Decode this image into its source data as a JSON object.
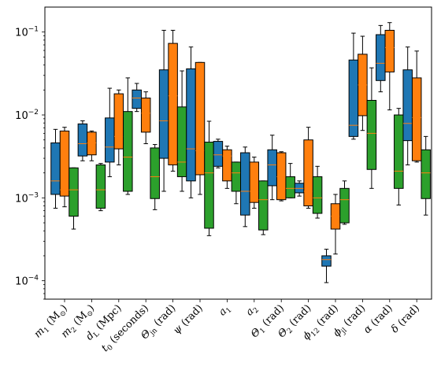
{
  "chart_data": {
    "type": "box",
    "yscale": "log",
    "ylim": [
      6e-05,
      0.2
    ],
    "yticks": [
      {
        "value": 0.1,
        "base": "10",
        "exp": "−1"
      },
      {
        "value": 0.01,
        "base": "10",
        "exp": "−2"
      },
      {
        "value": 0.001,
        "base": "10",
        "exp": "−3"
      },
      {
        "value": 0.0001,
        "base": "10",
        "exp": "−4"
      }
    ],
    "series_colors": [
      "#1f77b4",
      "#ff7f0e",
      "#2ca02c"
    ],
    "median_color": "#ff7f0e",
    "categories": [
      {
        "label_main": "m",
        "label_sub": "1",
        "label_rest": " (M",
        "label_sun": "⊙",
        "label_end": ")"
      },
      {
        "label_main": "m",
        "label_sub": "2",
        "label_rest": " (M",
        "label_sun": "⊙",
        "label_end": ")"
      },
      {
        "label_main": "d",
        "label_sub": "L",
        "label_rest": " (Mpc)",
        "label_sun": "",
        "label_end": ""
      },
      {
        "label_main": "t",
        "label_sub": "0",
        "label_rest": " (seconds)",
        "label_sun": "",
        "label_end": ""
      },
      {
        "label_main": "Θ",
        "label_sub": "jn",
        "label_rest": " (rad)",
        "label_sun": "",
        "label_end": ""
      },
      {
        "label_main": "ψ",
        "label_sub": "",
        "label_rest": " (rad)",
        "label_sun": "",
        "label_end": ""
      },
      {
        "label_main": "a",
        "label_sub": "1",
        "label_rest": "",
        "label_sun": "",
        "label_end": ""
      },
      {
        "label_main": "a",
        "label_sub": "2",
        "label_rest": "",
        "label_sun": "",
        "label_end": ""
      },
      {
        "label_main": "Θ",
        "label_sub": "1",
        "label_rest": " (rad)",
        "label_sun": "",
        "label_end": ""
      },
      {
        "label_main": "Θ",
        "label_sub": "2",
        "label_rest": " (rad)",
        "label_sun": "",
        "label_end": ""
      },
      {
        "label_main": "ϕ",
        "label_sub": "12",
        "label_rest": " (rad)",
        "label_sun": "",
        "label_end": ""
      },
      {
        "label_main": "ϕ",
        "label_sub": "jl",
        "label_rest": " (rad)",
        "label_sun": "",
        "label_end": ""
      },
      {
        "label_main": "α",
        "label_sub": "",
        "label_rest": " (rad)",
        "label_sun": "",
        "label_end": ""
      },
      {
        "label_main": "δ",
        "label_sub": "",
        "label_rest": " (rad)",
        "label_sun": "",
        "label_end": ""
      }
    ],
    "boxes": [
      [
        {
          "whislo": 0.00075,
          "q1": 0.0011,
          "med": 0.0016,
          "q3": 0.0046,
          "whishi": 0.0067
        },
        {
          "whislo": 0.00078,
          "q1": 0.00105,
          "med": 0.00125,
          "q3": 0.0064,
          "whishi": 0.0071
        },
        {
          "whislo": 0.00042,
          "q1": 0.0006,
          "med": 0.00125,
          "q3": 0.0023,
          "whishi": 0.0023
        }
      ],
      [
        {
          "whislo": 0.0028,
          "q1": 0.0032,
          "med": 0.0045,
          "q3": 0.0078,
          "whishi": 0.0085
        },
        {
          "whislo": 0.0028,
          "q1": 0.0033,
          "med": 0.0046,
          "q3": 0.0062,
          "whishi": 0.0064
        },
        {
          "whislo": 0.0007,
          "q1": 0.00075,
          "med": 0.00125,
          "q3": 0.0025,
          "whishi": 0.0026
        }
      ],
      [
        {
          "whislo": 0.0018,
          "q1": 0.0027,
          "med": 0.0041,
          "q3": 0.0092,
          "whishi": 0.021
        },
        {
          "whislo": 0.0025,
          "q1": 0.0039,
          "med": 0.0055,
          "q3": 0.018,
          "whishi": 0.02
        },
        {
          "whislo": 0.0011,
          "q1": 0.0012,
          "med": 0.0031,
          "q3": 0.011,
          "whishi": 0.028
        }
      ],
      [
        {
          "whislo": 0.011,
          "q1": 0.012,
          "med": 0.016,
          "q3": 0.02,
          "whishi": 0.024
        },
        {
          "whislo": 0.0045,
          "q1": 0.0062,
          "med": 0.0105,
          "q3": 0.016,
          "whishi": 0.019
        },
        {
          "whislo": 0.00072,
          "q1": 0.00098,
          "med": 0.0018,
          "q3": 0.004,
          "whishi": 0.0044
        }
      ],
      [
        {
          "whislo": 0.0012,
          "q1": 0.003,
          "med": 0.0085,
          "q3": 0.035,
          "whishi": 0.105
        },
        {
          "whislo": 0.0021,
          "q1": 0.0025,
          "med": 0.017,
          "q3": 0.073,
          "whishi": 0.105
        },
        {
          "whislo": 0.0012,
          "q1": 0.0018,
          "med": 0.0027,
          "q3": 0.0125,
          "whishi": 0.034
        }
      ],
      [
        {
          "whislo": 0.001,
          "q1": 0.0016,
          "med": 0.0039,
          "q3": 0.036,
          "whishi": 0.066
        },
        {
          "whislo": 0.0011,
          "q1": 0.0019,
          "med": 0.0037,
          "q3": 0.043,
          "whishi": 0.043
        },
        {
          "whislo": 0.00035,
          "q1": 0.00043,
          "med": 0.002,
          "q3": 0.0047,
          "whishi": 0.0084
        }
      ],
      [
        {
          "whislo": 0.0023,
          "q1": 0.0024,
          "med": 0.0033,
          "q3": 0.0048,
          "whishi": 0.0051
        },
        {
          "whislo": 0.0013,
          "q1": 0.0016,
          "med": 0.0032,
          "q3": 0.0038,
          "whishi": 0.0042
        },
        {
          "whislo": 0.00085,
          "q1": 0.0012,
          "med": 0.002,
          "q3": 0.0027,
          "whishi": 0.0027
        }
      ],
      [
        {
          "whislo": 0.00045,
          "q1": 0.00062,
          "med": 0.0012,
          "q3": 0.0035,
          "whishi": 0.0041
        },
        {
          "whislo": 0.00075,
          "q1": 0.00088,
          "med": 0.0012,
          "q3": 0.0027,
          "whishi": 0.0031
        },
        {
          "whislo": 0.00036,
          "q1": 0.00041,
          "med": 0.00095,
          "q3": 0.0016,
          "whishi": 0.0016
        }
      ],
      [
        {
          "whislo": 0.00095,
          "q1": 0.0014,
          "med": 0.0025,
          "q3": 0.0038,
          "whishi": 0.0057
        },
        {
          "whislo": 0.00092,
          "q1": 0.00095,
          "med": 0.0018,
          "q3": 0.0035,
          "whishi": 0.0036
        },
        {
          "whislo": 0.001,
          "q1": 0.001,
          "med": 0.0013,
          "q3": 0.0018,
          "whishi": 0.0026
        }
      ],
      [
        {
          "whislo": 0.00105,
          "q1": 0.00115,
          "med": 0.0013,
          "q3": 0.0015,
          "whishi": 0.0016
        },
        {
          "whislo": 0.00075,
          "q1": 0.0008,
          "med": 0.0012,
          "q3": 0.005,
          "whishi": 0.0071
        },
        {
          "whislo": 0.00057,
          "q1": 0.00065,
          "med": 0.001,
          "q3": 0.0018,
          "whishi": 0.0024
        }
      ],
      [
        {
          "whislo": 9.5e-05,
          "q1": 0.00015,
          "med": 0.00018,
          "q3": 0.0002,
          "whishi": 0.00024
        },
        {
          "whislo": 0.00021,
          "q1": 0.00042,
          "med": 0.0006,
          "q3": 0.00085,
          "whishi": 0.0011
        },
        {
          "whislo": 0.00048,
          "q1": 0.0005,
          "med": 0.00095,
          "q3": 0.0013,
          "whishi": 0.0016
        }
      ],
      [
        {
          "whislo": 0.0051,
          "q1": 0.0055,
          "med": 0.0075,
          "q3": 0.046,
          "whishi": 0.097
        },
        {
          "whislo": 0.0065,
          "q1": 0.0098,
          "med": 0.023,
          "q3": 0.054,
          "whishi": 0.089
        },
        {
          "whislo": 0.0013,
          "q1": 0.0022,
          "med": 0.006,
          "q3": 0.015,
          "whishi": 0.037
        }
      ],
      [
        {
          "whislo": 0.019,
          "q1": 0.026,
          "med": 0.042,
          "q3": 0.093,
          "whishi": 0.12
        },
        {
          "whislo": 0.0115,
          "q1": 0.033,
          "med": 0.065,
          "q3": 0.105,
          "whishi": 0.13
        },
        {
          "whislo": 0.00082,
          "q1": 0.0013,
          "med": 0.0021,
          "q3": 0.01,
          "whishi": 0.012
        }
      ],
      [
        {
          "whislo": 0.0025,
          "q1": 0.0049,
          "med": 0.0079,
          "q3": 0.035,
          "whishi": 0.066
        },
        {
          "whislo": 0.0027,
          "q1": 0.0028,
          "med": 0.0093,
          "q3": 0.028,
          "whishi": 0.059
        },
        {
          "whislo": 0.00062,
          "q1": 0.00098,
          "med": 0.002,
          "q3": 0.0038,
          "whishi": 0.0055
        }
      ]
    ]
  }
}
